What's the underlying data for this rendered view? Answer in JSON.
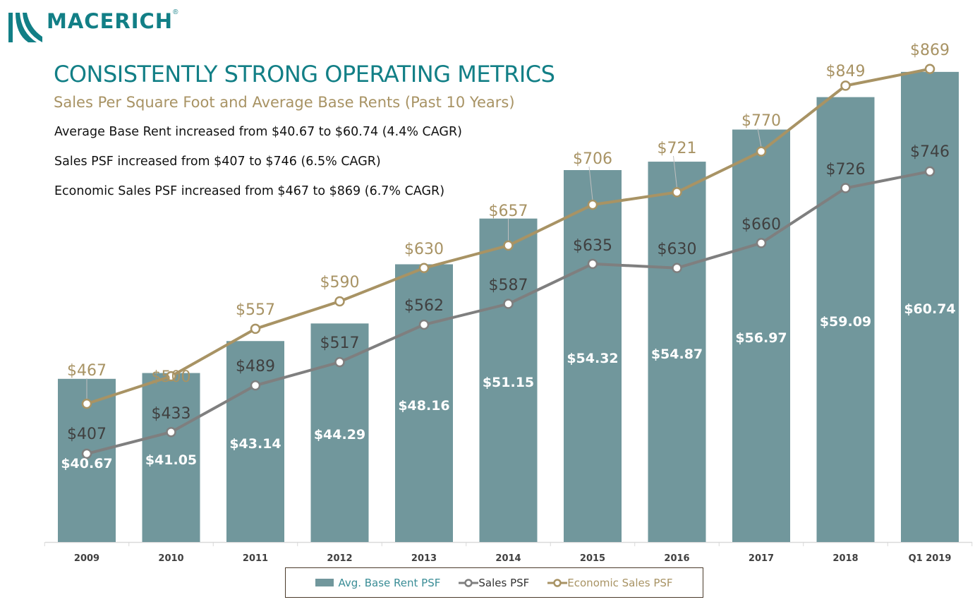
{
  "logo": {
    "text": "MACERICH",
    "reg": "®",
    "color": "#127f86"
  },
  "title": "CONSISTENTLY STRONG OPERATING METRICS",
  "subtitle": "Sales Per Square Foot and Average Base Rents (Past 10 Years)",
  "bullets": [
    "Average Base Rent increased from $40.67 to $60.74 (4.4% CAGR)",
    "Sales PSF increased from $407 to $746 (6.5% CAGR)",
    "Economic Sales PSF increased from $467 to $869 (6.7% CAGR)"
  ],
  "chart_data": {
    "type": "bar+line",
    "categories": [
      "2009",
      "2010",
      "2011",
      "2012",
      "2013",
      "2014",
      "2015",
      "2016",
      "2017",
      "2018",
      "Q1 2019"
    ],
    "series": [
      {
        "name": "Avg. Base Rent PSF",
        "type": "bar",
        "color": "#71979c",
        "values": [
          40.67,
          41.05,
          43.14,
          44.29,
          48.16,
          51.15,
          54.32,
          54.87,
          56.97,
          59.09,
          60.74
        ],
        "labels": [
          "$40.67",
          "$41.05",
          "$43.14",
          "$44.29",
          "$48.16",
          "$51.15",
          "$54.32",
          "$54.87",
          "$56.97",
          "$59.09",
          "$60.74"
        ]
      },
      {
        "name": "Sales PSF",
        "type": "line",
        "color": "#7f7f7f",
        "values": [
          407,
          433,
          489,
          517,
          562,
          587,
          635,
          630,
          660,
          726,
          746
        ],
        "labels": [
          "$407",
          "$433",
          "$489",
          "$517",
          "$562",
          "$587",
          "$635",
          "$630",
          "$660",
          "$726",
          "$746"
        ]
      },
      {
        "name": "Economic Sales PSF",
        "type": "line",
        "color": "#a89364",
        "values": [
          467,
          500,
          557,
          590,
          630,
          657,
          706,
          721,
          770,
          849,
          869
        ],
        "labels": [
          "$467",
          "$500",
          "$557",
          "$590",
          "$630",
          "$657",
          "$706",
          "$721",
          "$770",
          "$849",
          "$869"
        ]
      }
    ],
    "bar_axis_min": 30,
    "line_axis_min": 301,
    "gridlines": false,
    "legend_position": "bottom"
  }
}
